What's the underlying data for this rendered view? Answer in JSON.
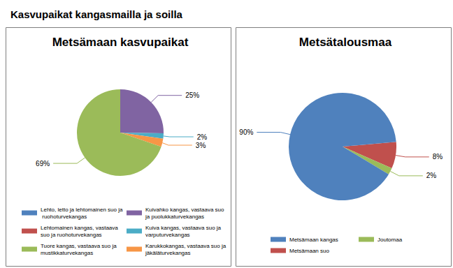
{
  "title": "Kasvupaikat kangasmailla ja soilla",
  "chart_data": [
    {
      "type": "pie",
      "title": "Metsämaan kasvupaikat",
      "categories": [
        "Kuivahko kangas, vastaava suo ja puolukkaturvekangas",
        "Kuiva kangas, vastaava suo ja varputurvekangas",
        "Karukkokangas, vastaava suo ja jäkäläturvekangas",
        "Tuore kangas, vastaava suo ja mustikkaturvekangas",
        "Lehto, letto ja lehtomainen suo ja ruohoturvekangas",
        "Lehtomainen kangas, vastaava suo ja ruohoturvekangas"
      ],
      "values": [
        25,
        2,
        3,
        69,
        null,
        null
      ],
      "value_labels": [
        "25%",
        "2%",
        "3%",
        "69%",
        null,
        null
      ],
      "colors": [
        "#8064a2",
        "#4bacc6",
        "#f79646",
        "#9bbb59",
        "#4f81bd",
        "#c0504d"
      ],
      "data_labels": true,
      "legend": "bottom"
    },
    {
      "type": "pie",
      "title": "Metsätalousmaa",
      "categories": [
        "Metsämaan suo",
        "Joutomaa",
        "Metsämaan kangas"
      ],
      "values": [
        8,
        2,
        90
      ],
      "value_labels": [
        "8%",
        "2%",
        "90%"
      ],
      "colors": [
        "#c0504d",
        "#9bbb59",
        "#4f81bd"
      ],
      "data_labels": true,
      "legend": "bottom"
    }
  ]
}
